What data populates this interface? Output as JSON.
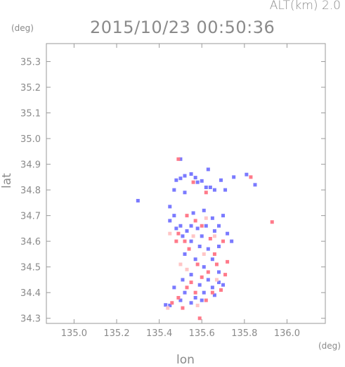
{
  "header": {
    "alt_label": "ALT(km) 2.0",
    "timestamp": "2015/10/23 00:50:36"
  },
  "chart_data": {
    "type": "scatter",
    "title": "2015/10/23 00:50:36",
    "xlabel": "lon",
    "ylabel": "lat",
    "x_unit": "(deg)",
    "y_unit": "(deg)",
    "xlim": [
      134.87,
      136.18
    ],
    "ylim": [
      34.28,
      35.37
    ],
    "xticks": [
      135.0,
      135.2,
      135.4,
      135.6,
      135.8,
      136.0
    ],
    "xtick_labels": [
      "135.0",
      "135.2",
      "135.4",
      "135.6",
      "135.8",
      "136.0"
    ],
    "yticks": [
      34.3,
      34.4,
      34.5,
      34.6,
      34.7,
      34.8,
      34.9,
      35.0,
      35.1,
      35.2,
      35.3
    ],
    "ytick_labels": [
      "34.3",
      "34.4",
      "34.5",
      "34.6",
      "34.7",
      "34.8",
      "34.9",
      "35.0",
      "35.1",
      "35.2",
      "35.3"
    ],
    "grid": false,
    "series": [
      {
        "color": "#7a7aff",
        "points": [
          [
            135.3,
            34.758
          ],
          [
            135.48,
            34.838
          ],
          [
            135.5,
            34.845
          ],
          [
            135.52,
            34.855
          ],
          [
            135.55,
            34.862
          ],
          [
            135.57,
            34.848
          ],
          [
            135.6,
            34.835
          ],
          [
            135.62,
            34.81
          ],
          [
            135.64,
            34.81
          ],
          [
            135.66,
            34.8
          ],
          [
            135.69,
            34.838
          ],
          [
            135.71,
            34.8
          ],
          [
            135.75,
            34.85
          ],
          [
            135.81,
            34.86
          ],
          [
            135.5,
            34.92
          ],
          [
            135.47,
            34.8
          ],
          [
            135.52,
            34.79
          ],
          [
            135.45,
            34.735
          ],
          [
            135.47,
            34.7
          ],
          [
            135.5,
            34.66
          ],
          [
            135.53,
            34.64
          ],
          [
            135.55,
            34.66
          ],
          [
            135.58,
            34.65
          ],
          [
            135.6,
            34.62
          ],
          [
            135.62,
            34.66
          ],
          [
            135.65,
            34.69
          ],
          [
            135.66,
            34.64
          ],
          [
            135.68,
            34.66
          ],
          [
            135.7,
            34.7
          ],
          [
            135.72,
            34.63
          ],
          [
            135.74,
            34.6
          ],
          [
            135.68,
            34.58
          ],
          [
            135.63,
            34.57
          ],
          [
            135.59,
            34.58
          ],
          [
            135.55,
            34.6
          ],
          [
            135.51,
            34.62
          ],
          [
            135.48,
            34.65
          ],
          [
            135.45,
            34.68
          ],
          [
            135.61,
            34.72
          ],
          [
            135.56,
            34.71
          ],
          [
            135.52,
            34.55
          ],
          [
            135.57,
            34.53
          ],
          [
            135.61,
            34.5
          ],
          [
            135.65,
            34.53
          ],
          [
            135.68,
            34.48
          ],
          [
            135.63,
            34.45
          ],
          [
            135.59,
            34.43
          ],
          [
            135.55,
            34.47
          ],
          [
            135.51,
            34.45
          ],
          [
            135.47,
            34.42
          ],
          [
            135.52,
            34.4
          ],
          [
            135.57,
            34.38
          ],
          [
            135.61,
            34.4
          ],
          [
            135.65,
            34.42
          ],
          [
            135.68,
            34.44
          ],
          [
            135.55,
            34.36
          ],
          [
            135.5,
            34.37
          ],
          [
            135.45,
            34.35
          ],
          [
            135.43,
            34.352
          ],
          [
            135.6,
            34.37
          ],
          [
            135.66,
            34.39
          ],
          [
            135.7,
            34.43
          ],
          [
            135.58,
            34.83
          ],
          [
            135.63,
            34.88
          ],
          [
            135.85,
            34.82
          ]
        ]
      },
      {
        "color": "#ff7a8a",
        "points": [
          [
            135.93,
            34.675
          ],
          [
            135.83,
            34.85
          ],
          [
            135.49,
            34.92
          ],
          [
            135.56,
            34.83
          ],
          [
            135.62,
            34.79
          ],
          [
            135.53,
            34.7
          ],
          [
            135.57,
            34.68
          ],
          [
            135.49,
            34.63
          ],
          [
            135.52,
            34.6
          ],
          [
            135.6,
            34.66
          ],
          [
            135.64,
            34.61
          ],
          [
            135.7,
            34.6
          ],
          [
            135.54,
            34.57
          ],
          [
            135.66,
            34.55
          ],
          [
            135.58,
            34.51
          ],
          [
            135.63,
            34.48
          ],
          [
            135.67,
            34.51
          ],
          [
            135.71,
            34.47
          ],
          [
            135.55,
            34.44
          ],
          [
            135.6,
            34.46
          ],
          [
            135.65,
            34.4
          ],
          [
            135.69,
            34.41
          ],
          [
            135.53,
            34.42
          ],
          [
            135.49,
            34.38
          ],
          [
            135.46,
            34.36
          ],
          [
            135.57,
            34.4
          ],
          [
            135.62,
            34.37
          ],
          [
            135.51,
            34.34
          ],
          [
            135.48,
            34.6
          ],
          [
            135.72,
            34.52
          ],
          [
            135.59,
            34.3
          ]
        ]
      },
      {
        "color": "#ffc6c6",
        "points": [
          [
            135.45,
            34.63
          ],
          [
            135.56,
            34.62
          ],
          [
            135.61,
            34.55
          ],
          [
            135.5,
            34.51
          ],
          [
            135.67,
            34.45
          ],
          [
            135.53,
            34.49
          ],
          [
            135.58,
            34.35
          ],
          [
            135.44,
            34.34
          ],
          [
            135.62,
            34.69
          ],
          [
            135.66,
            34.62
          ]
        ]
      }
    ]
  }
}
